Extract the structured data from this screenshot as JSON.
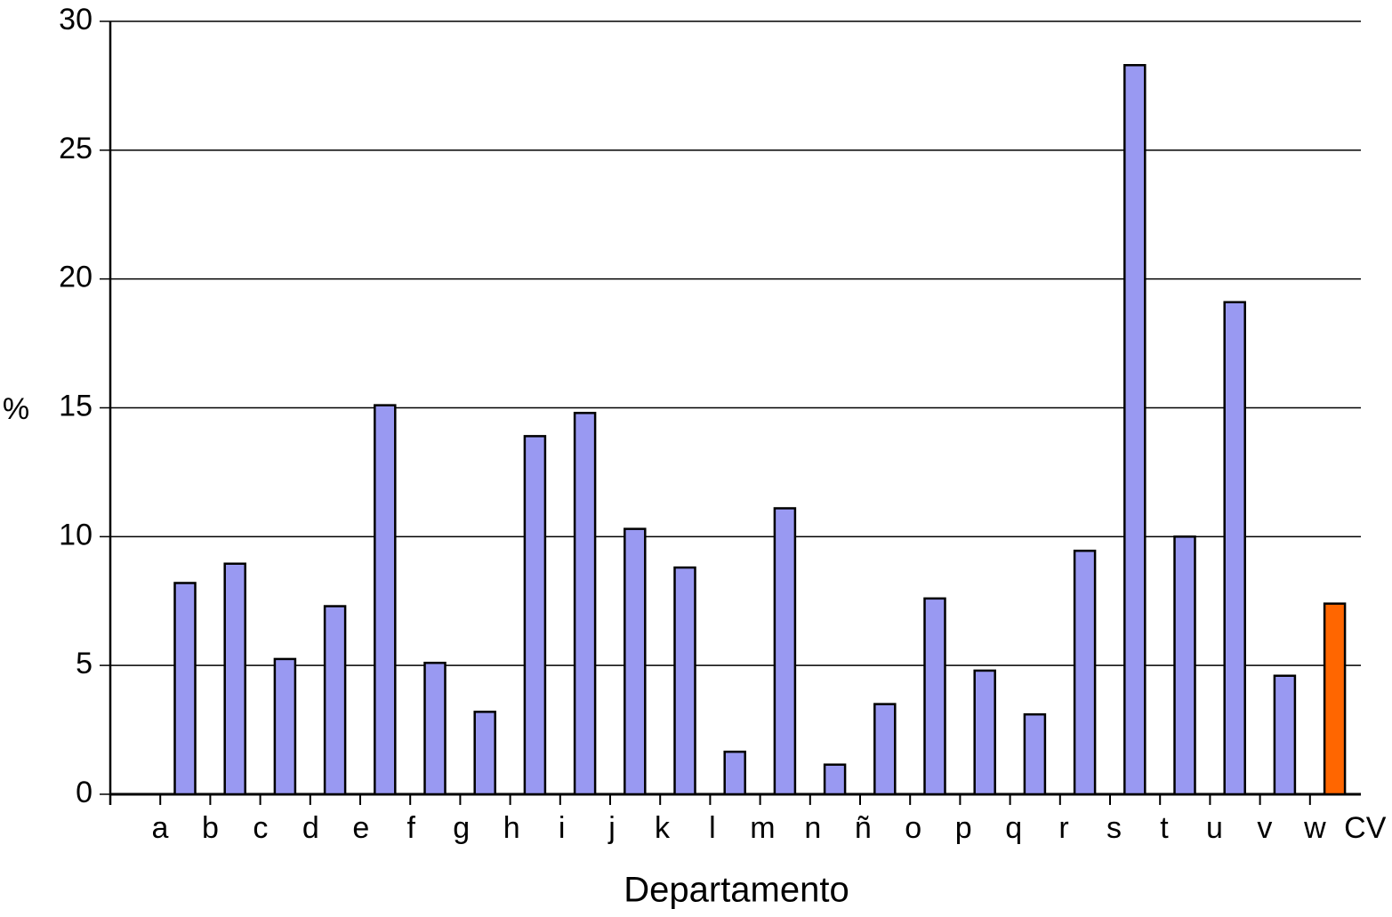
{
  "chart_data": {
    "type": "bar",
    "x_label": "Departamento",
    "y_label": "%",
    "categories": [
      "a",
      "b",
      "c",
      "d",
      "e",
      "f",
      "g",
      "h",
      "i",
      "j",
      "k",
      "l",
      "m",
      "n",
      "ñ",
      "o",
      "p",
      "q",
      "r",
      "s",
      "t",
      "u",
      "v",
      "w",
      "CV"
    ],
    "values": [
      8.2,
      8.95,
      5.25,
      7.3,
      15.1,
      5.1,
      3.2,
      13.9,
      14.8,
      10.3,
      8.8,
      1.65,
      11.1,
      1.15,
      3.5,
      7.6,
      4.8,
      3.1,
      9.45,
      28.3,
      10.0,
      19.1,
      4.6,
      null,
      7.4
    ],
    "colors": [
      "#9999f2",
      "#9999f2",
      "#9999f2",
      "#9999f2",
      "#9999f2",
      "#9999f2",
      "#9999f2",
      "#9999f2",
      "#9999f2",
      "#9999f2",
      "#9999f2",
      "#9999f2",
      "#9999f2",
      "#9999f2",
      "#9999f2",
      "#9999f2",
      "#9999f2",
      "#9999f2",
      "#9999f2",
      "#9999f2",
      "#9999f2",
      "#9999f2",
      "#9999f2",
      "#9999f2",
      "#ff6600"
    ],
    "ylim": [
      0,
      30
    ],
    "yticks": [
      0,
      5,
      10,
      15,
      20,
      25,
      30
    ],
    "grid": true
  }
}
